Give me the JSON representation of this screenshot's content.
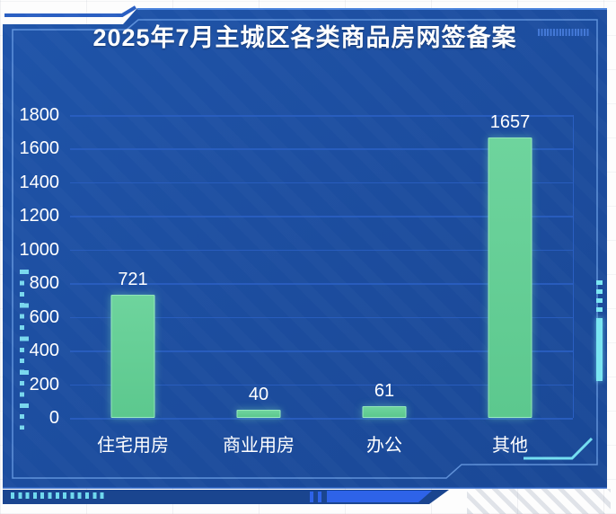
{
  "frame": {
    "title": "2025年7月主城区各类商品房网签备案"
  },
  "colors": {
    "panel_blue": "#1D4B9D",
    "grid_line": "#2A5FC2",
    "bar_green": "#63CE97",
    "cyan_accent": "#74DEF1",
    "bright_blue": "#2E63E8",
    "text_white": "#FFFFFF"
  },
  "chart_data": {
    "type": "bar",
    "title": "2025年7月主城区各类商品房网签备案",
    "categories": [
      "住宅用房",
      "商业用房",
      "办公",
      "其他"
    ],
    "values": [
      721,
      40,
      61,
      1657
    ],
    "xlabel": "",
    "ylabel": "",
    "ylim": [
      0,
      1800
    ],
    "ytick_step": 200,
    "yticks": [
      1800,
      1600,
      1400,
      1200,
      1000,
      800,
      600,
      400,
      200,
      0
    ],
    "grid": true,
    "legend": false,
    "value_labels": true,
    "bar_color": "#63CE97"
  }
}
